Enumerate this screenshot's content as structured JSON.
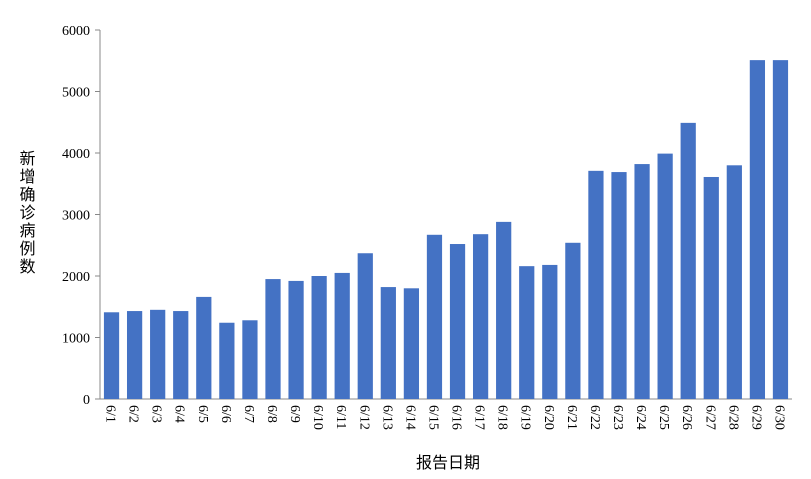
{
  "chart_data": {
    "type": "bar",
    "y_label": "新增确诊病例数",
    "x_label": "报告日期",
    "categories": [
      "6/1",
      "6/2",
      "6/3",
      "6/4",
      "6/5",
      "6/6",
      "6/7",
      "6/8",
      "6/9",
      "6/10",
      "6/11",
      "6/12",
      "6/13",
      "6/14",
      "6/15",
      "6/16",
      "6/17",
      "6/18",
      "6/19",
      "6/20",
      "6/21",
      "6/22",
      "6/23",
      "6/24",
      "6/25",
      "6/26",
      "6/27",
      "6/28",
      "6/29",
      "6/30"
    ],
    "values": [
      1410,
      1430,
      1450,
      1430,
      1660,
      1240,
      1280,
      1950,
      1920,
      2000,
      2050,
      2370,
      1820,
      1800,
      2670,
      2520,
      2680,
      2880,
      2160,
      2180,
      2540,
      3710,
      3690,
      3820,
      3990,
      4490,
      3610,
      3800,
      5510,
      5510
    ],
    "color": "#4472c4",
    "ylim": [
      0,
      6000
    ],
    "yticks": [
      0,
      1000,
      2000,
      3000,
      4000,
      5000,
      6000
    ],
    "grid": false
  }
}
